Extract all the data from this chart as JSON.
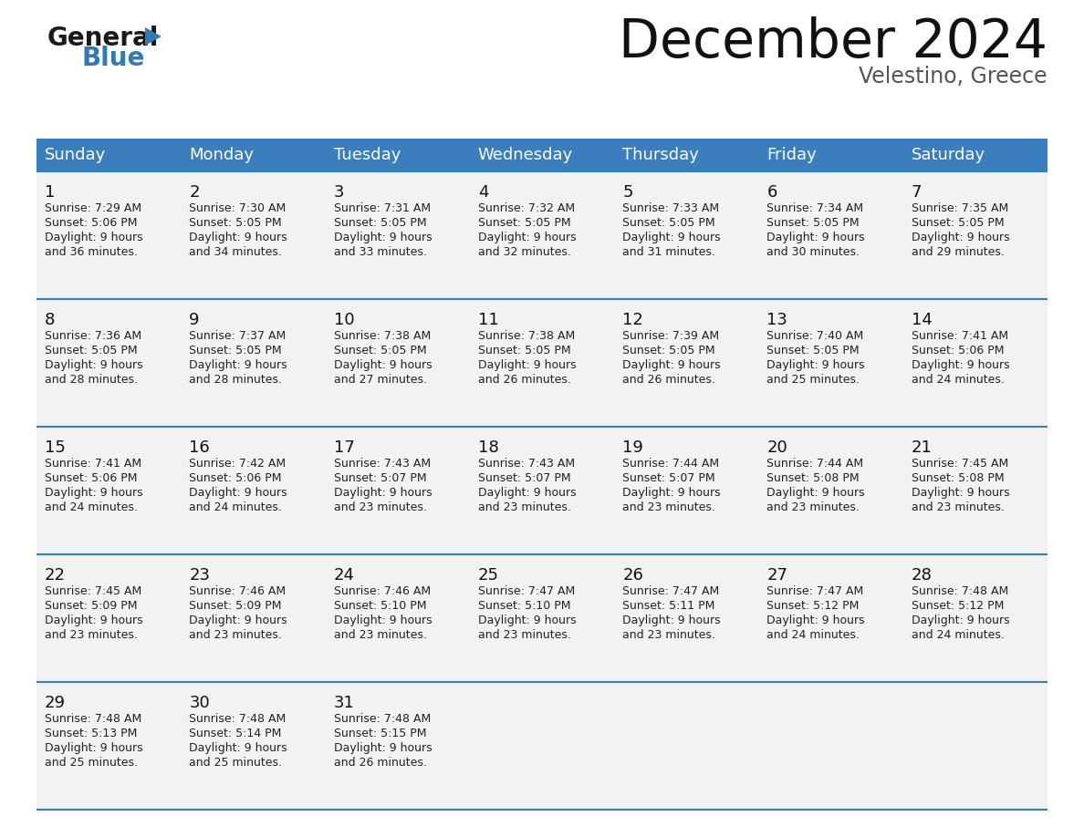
{
  "title": "December 2024",
  "subtitle": "Velestino, Greece",
  "header_color": "#3A7EBD",
  "header_text_color": "#FFFFFF",
  "days_of_week": [
    "Sunday",
    "Monday",
    "Tuesday",
    "Wednesday",
    "Thursday",
    "Friday",
    "Saturday"
  ],
  "bg_color": "#FFFFFF",
  "row_bg_color": "#F2F2F2",
  "divider_color": "#3A7EBD",
  "text_color": "#111111",
  "detail_color": "#222222",
  "calendar": [
    [
      {
        "day": 1,
        "sunrise": "7:29 AM",
        "sunset": "5:06 PM",
        "daylight_line1": "9 hours",
        "daylight_line2": "and 36 minutes."
      },
      {
        "day": 2,
        "sunrise": "7:30 AM",
        "sunset": "5:05 PM",
        "daylight_line1": "9 hours",
        "daylight_line2": "and 34 minutes."
      },
      {
        "day": 3,
        "sunrise": "7:31 AM",
        "sunset": "5:05 PM",
        "daylight_line1": "9 hours",
        "daylight_line2": "and 33 minutes."
      },
      {
        "day": 4,
        "sunrise": "7:32 AM",
        "sunset": "5:05 PM",
        "daylight_line1": "9 hours",
        "daylight_line2": "and 32 minutes."
      },
      {
        "day": 5,
        "sunrise": "7:33 AM",
        "sunset": "5:05 PM",
        "daylight_line1": "9 hours",
        "daylight_line2": "and 31 minutes."
      },
      {
        "day": 6,
        "sunrise": "7:34 AM",
        "sunset": "5:05 PM",
        "daylight_line1": "9 hours",
        "daylight_line2": "and 30 minutes."
      },
      {
        "day": 7,
        "sunrise": "7:35 AM",
        "sunset": "5:05 PM",
        "daylight_line1": "9 hours",
        "daylight_line2": "and 29 minutes."
      }
    ],
    [
      {
        "day": 8,
        "sunrise": "7:36 AM",
        "sunset": "5:05 PM",
        "daylight_line1": "9 hours",
        "daylight_line2": "and 28 minutes."
      },
      {
        "day": 9,
        "sunrise": "7:37 AM",
        "sunset": "5:05 PM",
        "daylight_line1": "9 hours",
        "daylight_line2": "and 28 minutes."
      },
      {
        "day": 10,
        "sunrise": "7:38 AM",
        "sunset": "5:05 PM",
        "daylight_line1": "9 hours",
        "daylight_line2": "and 27 minutes."
      },
      {
        "day": 11,
        "sunrise": "7:38 AM",
        "sunset": "5:05 PM",
        "daylight_line1": "9 hours",
        "daylight_line2": "and 26 minutes."
      },
      {
        "day": 12,
        "sunrise": "7:39 AM",
        "sunset": "5:05 PM",
        "daylight_line1": "9 hours",
        "daylight_line2": "and 26 minutes."
      },
      {
        "day": 13,
        "sunrise": "7:40 AM",
        "sunset": "5:05 PM",
        "daylight_line1": "9 hours",
        "daylight_line2": "and 25 minutes."
      },
      {
        "day": 14,
        "sunrise": "7:41 AM",
        "sunset": "5:06 PM",
        "daylight_line1": "9 hours",
        "daylight_line2": "and 24 minutes."
      }
    ],
    [
      {
        "day": 15,
        "sunrise": "7:41 AM",
        "sunset": "5:06 PM",
        "daylight_line1": "9 hours",
        "daylight_line2": "and 24 minutes."
      },
      {
        "day": 16,
        "sunrise": "7:42 AM",
        "sunset": "5:06 PM",
        "daylight_line1": "9 hours",
        "daylight_line2": "and 24 minutes."
      },
      {
        "day": 17,
        "sunrise": "7:43 AM",
        "sunset": "5:07 PM",
        "daylight_line1": "9 hours",
        "daylight_line2": "and 23 minutes."
      },
      {
        "day": 18,
        "sunrise": "7:43 AM",
        "sunset": "5:07 PM",
        "daylight_line1": "9 hours",
        "daylight_line2": "and 23 minutes."
      },
      {
        "day": 19,
        "sunrise": "7:44 AM",
        "sunset": "5:07 PM",
        "daylight_line1": "9 hours",
        "daylight_line2": "and 23 minutes."
      },
      {
        "day": 20,
        "sunrise": "7:44 AM",
        "sunset": "5:08 PM",
        "daylight_line1": "9 hours",
        "daylight_line2": "and 23 minutes."
      },
      {
        "day": 21,
        "sunrise": "7:45 AM",
        "sunset": "5:08 PM",
        "daylight_line1": "9 hours",
        "daylight_line2": "and 23 minutes."
      }
    ],
    [
      {
        "day": 22,
        "sunrise": "7:45 AM",
        "sunset": "5:09 PM",
        "daylight_line1": "9 hours",
        "daylight_line2": "and 23 minutes."
      },
      {
        "day": 23,
        "sunrise": "7:46 AM",
        "sunset": "5:09 PM",
        "daylight_line1": "9 hours",
        "daylight_line2": "and 23 minutes."
      },
      {
        "day": 24,
        "sunrise": "7:46 AM",
        "sunset": "5:10 PM",
        "daylight_line1": "9 hours",
        "daylight_line2": "and 23 minutes."
      },
      {
        "day": 25,
        "sunrise": "7:47 AM",
        "sunset": "5:10 PM",
        "daylight_line1": "9 hours",
        "daylight_line2": "and 23 minutes."
      },
      {
        "day": 26,
        "sunrise": "7:47 AM",
        "sunset": "5:11 PM",
        "daylight_line1": "9 hours",
        "daylight_line2": "and 23 minutes."
      },
      {
        "day": 27,
        "sunrise": "7:47 AM",
        "sunset": "5:12 PM",
        "daylight_line1": "9 hours",
        "daylight_line2": "and 24 minutes."
      },
      {
        "day": 28,
        "sunrise": "7:48 AM",
        "sunset": "5:12 PM",
        "daylight_line1": "9 hours",
        "daylight_line2": "and 24 minutes."
      }
    ],
    [
      {
        "day": 29,
        "sunrise": "7:48 AM",
        "sunset": "5:13 PM",
        "daylight_line1": "9 hours",
        "daylight_line2": "and 25 minutes."
      },
      {
        "day": 30,
        "sunrise": "7:48 AM",
        "sunset": "5:14 PM",
        "daylight_line1": "9 hours",
        "daylight_line2": "and 25 minutes."
      },
      {
        "day": 31,
        "sunrise": "7:48 AM",
        "sunset": "5:15 PM",
        "daylight_line1": "9 hours",
        "daylight_line2": "and 26 minutes."
      },
      null,
      null,
      null,
      null
    ]
  ],
  "logo_general_color": "#1A1A1A",
  "logo_blue_color": "#3279B5",
  "num_weeks": 5,
  "title_fontsize": 42,
  "subtitle_fontsize": 17,
  "header_fontsize": 13,
  "day_num_fontsize": 13,
  "detail_fontsize": 9
}
